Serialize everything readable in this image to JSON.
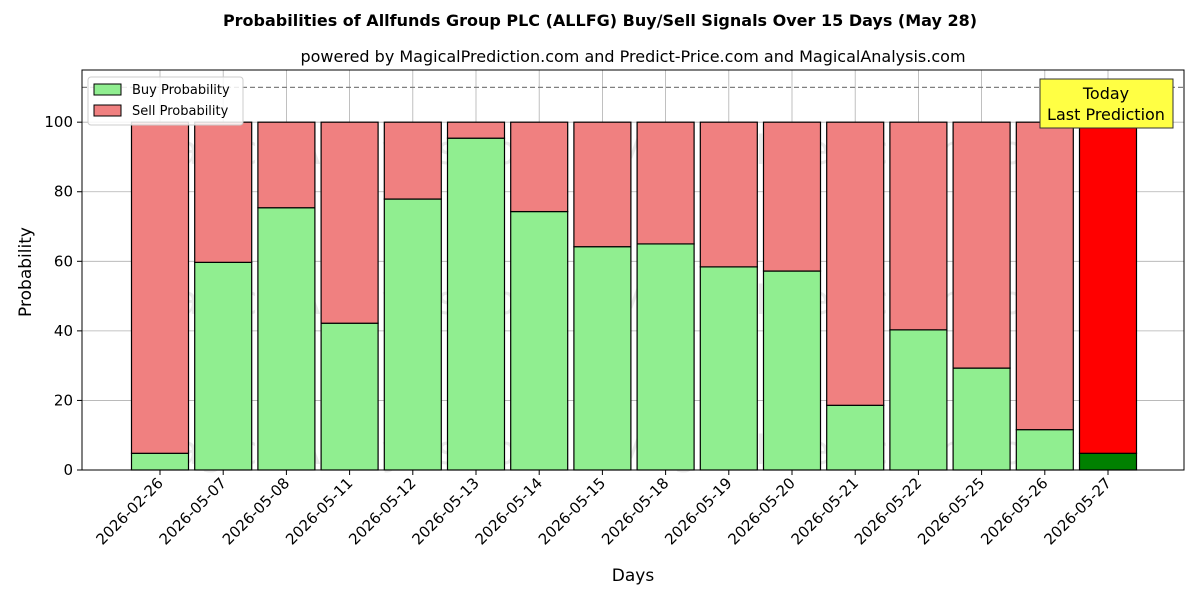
{
  "chart_data": {
    "type": "bar",
    "stacked": true,
    "title": "Probabilities of Allfunds Group PLC (ALLFG) Buy/Sell Signals Over 15 Days (May 28)",
    "subtitle": "powered by MagicalPrediction.com and Predict-Price.com and MagicalAnalysis.com",
    "xlabel": "Days",
    "ylabel": "Probability",
    "ylim": [
      0,
      115
    ],
    "yticks": [
      0,
      20,
      40,
      60,
      80,
      100
    ],
    "reference_line": 110,
    "grid": true,
    "legend_position": "top-left",
    "categories": [
      "2026-02-26",
      "2026-05-07",
      "2026-05-08",
      "2026-05-11",
      "2026-05-12",
      "2026-05-13",
      "2026-05-14",
      "2026-05-15",
      "2026-05-18",
      "2026-05-19",
      "2026-05-20",
      "2026-05-21",
      "2026-05-22",
      "2026-05-25",
      "2026-05-26",
      "2026-05-27"
    ],
    "series": [
      {
        "name": "Buy Probability",
        "color": "#90ee90",
        "values": [
          4.8,
          59.7,
          75.4,
          42.2,
          77.9,
          95.4,
          74.3,
          64.2,
          65.0,
          58.4,
          57.2,
          18.6,
          40.3,
          29.3,
          11.6,
          4.8
        ]
      },
      {
        "name": "Sell Probability",
        "color": "#f08080",
        "values": [
          95.2,
          40.3,
          24.6,
          57.8,
          22.1,
          4.6,
          25.7,
          35.8,
          35.0,
          41.6,
          42.8,
          81.4,
          59.7,
          70.7,
          88.4,
          95.2
        ]
      }
    ],
    "highlight": {
      "index": 15,
      "buy_color": "#008000",
      "sell_color": "#ff0000"
    },
    "annotation": {
      "lines": [
        "Today",
        "Last Prediction"
      ],
      "background": "#ffff44"
    },
    "watermarks": [
      "MagicalAnalysis.com",
      "MagicalPrediction.com"
    ]
  }
}
